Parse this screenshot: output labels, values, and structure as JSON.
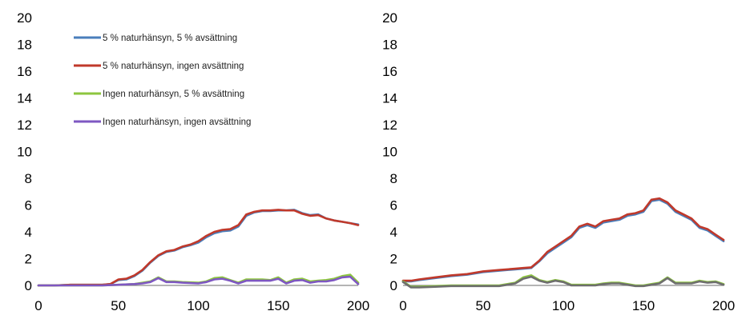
{
  "chart_data": [
    {
      "type": "line",
      "x_ticks": [
        "0",
        "50",
        "100",
        "150",
        "200"
      ],
      "y_ticks": [
        "0",
        "2",
        "4",
        "6",
        "8",
        "10",
        "12",
        "14",
        "16",
        "18",
        "20"
      ],
      "xlim": [
        0,
        200
      ],
      "ylim": [
        0,
        20
      ],
      "grid": false,
      "legend_position": "top-left",
      "series": [
        {
          "name": "5 % naturhänsyn, 5 % avsättning",
          "color": "#4a7ebb",
          "x": [
            0,
            10,
            20,
            30,
            40,
            45,
            50,
            55,
            60,
            65,
            70,
            75,
            80,
            85,
            90,
            95,
            100,
            105,
            110,
            115,
            120,
            125,
            130,
            135,
            140,
            145,
            150,
            155,
            160,
            165,
            170,
            175,
            180,
            185,
            190,
            195,
            200
          ],
          "y": [
            0,
            0,
            0.05,
            0.05,
            0.05,
            0.1,
            0.4,
            0.45,
            0.7,
            1.1,
            1.7,
            2.2,
            2.5,
            2.6,
            2.85,
            3.0,
            3.2,
            3.6,
            3.9,
            4.05,
            4.1,
            4.4,
            5.2,
            5.45,
            5.55,
            5.55,
            5.6,
            5.6,
            5.65,
            5.4,
            5.25,
            5.3,
            5.0,
            4.85,
            4.75,
            4.65,
            4.55
          ]
        },
        {
          "name": "5 % naturhänsyn, ingen avsättning",
          "color": "#c0392b",
          "x": [
            0,
            10,
            20,
            30,
            40,
            45,
            50,
            55,
            60,
            65,
            70,
            75,
            80,
            85,
            90,
            95,
            100,
            105,
            110,
            115,
            120,
            125,
            130,
            135,
            140,
            145,
            150,
            155,
            160,
            165,
            170,
            175,
            180,
            185,
            190,
            195,
            200
          ],
          "y": [
            0,
            0,
            0.05,
            0.05,
            0.05,
            0.1,
            0.45,
            0.5,
            0.75,
            1.15,
            1.75,
            2.25,
            2.55,
            2.65,
            2.9,
            3.05,
            3.3,
            3.7,
            4.0,
            4.15,
            4.2,
            4.5,
            5.3,
            5.5,
            5.6,
            5.6,
            5.65,
            5.6,
            5.6,
            5.35,
            5.2,
            5.25,
            5.0,
            4.85,
            4.75,
            4.65,
            4.5
          ]
        },
        {
          "name": "Ingen naturhänsyn, 5 % avsättning",
          "color": "#8dc63f",
          "x": [
            0,
            10,
            20,
            30,
            40,
            50,
            60,
            65,
            70,
            75,
            80,
            85,
            90,
            100,
            105,
            110,
            115,
            120,
            125,
            130,
            135,
            140,
            145,
            150,
            155,
            160,
            165,
            170,
            175,
            180,
            185,
            190,
            195,
            200
          ],
          "y": [
            0,
            0,
            0,
            0,
            0,
            0.05,
            0.1,
            0.2,
            0.3,
            0.6,
            0.3,
            0.3,
            0.25,
            0.2,
            0.3,
            0.55,
            0.6,
            0.4,
            0.2,
            0.45,
            0.45,
            0.45,
            0.4,
            0.6,
            0.2,
            0.45,
            0.5,
            0.3,
            0.35,
            0.4,
            0.5,
            0.7,
            0.8,
            0.2
          ]
        },
        {
          "name": "Ingen naturhänsyn, ingen avsättning",
          "color": "#7e57c2",
          "x": [
            0,
            10,
            20,
            30,
            40,
            50,
            60,
            65,
            70,
            75,
            80,
            85,
            90,
            100,
            105,
            110,
            115,
            120,
            125,
            130,
            135,
            140,
            145,
            150,
            155,
            160,
            165,
            170,
            175,
            180,
            185,
            190,
            195,
            200
          ],
          "y": [
            0,
            0,
            0,
            0,
            0,
            0.05,
            0.1,
            0.15,
            0.25,
            0.55,
            0.25,
            0.25,
            0.2,
            0.15,
            0.25,
            0.45,
            0.5,
            0.35,
            0.15,
            0.35,
            0.35,
            0.35,
            0.35,
            0.5,
            0.15,
            0.35,
            0.4,
            0.2,
            0.3,
            0.3,
            0.4,
            0.6,
            0.65,
            0.1
          ]
        }
      ]
    },
    {
      "type": "line",
      "x_ticks": [
        "0",
        "50",
        "100",
        "150",
        "200"
      ],
      "y_ticks": [
        "0",
        "2",
        "4",
        "6",
        "8",
        "10",
        "12",
        "14",
        "16",
        "18",
        "20"
      ],
      "xlim": [
        0,
        200
      ],
      "ylim": [
        0,
        20
      ],
      "grid": false,
      "legend_position": "none",
      "series": [
        {
          "color": "#4a7ebb",
          "x": [
            0,
            5,
            10,
            20,
            30,
            40,
            50,
            60,
            70,
            75,
            80,
            85,
            90,
            95,
            100,
            105,
            110,
            115,
            120,
            125,
            130,
            135,
            140,
            145,
            150,
            155,
            160,
            165,
            170,
            175,
            180,
            185,
            190,
            195,
            200
          ],
          "y": [
            0.3,
            0.3,
            0.4,
            0.55,
            0.7,
            0.8,
            1.0,
            1.1,
            1.2,
            1.25,
            1.3,
            1.8,
            2.4,
            2.8,
            3.2,
            3.6,
            4.3,
            4.5,
            4.3,
            4.7,
            4.8,
            4.9,
            5.2,
            5.3,
            5.5,
            6.3,
            6.4,
            6.1,
            5.5,
            5.2,
            4.9,
            4.3,
            4.1,
            3.7,
            3.3
          ]
        },
        {
          "color": "#c0392b",
          "x": [
            0,
            5,
            10,
            20,
            30,
            40,
            50,
            60,
            70,
            75,
            80,
            85,
            90,
            95,
            100,
            105,
            110,
            115,
            120,
            125,
            130,
            135,
            140,
            145,
            150,
            155,
            160,
            165,
            170,
            175,
            180,
            185,
            190,
            195,
            200
          ],
          "y": [
            0.35,
            0.35,
            0.45,
            0.6,
            0.75,
            0.85,
            1.05,
            1.15,
            1.25,
            1.3,
            1.35,
            1.85,
            2.5,
            2.9,
            3.3,
            3.7,
            4.4,
            4.6,
            4.4,
            4.8,
            4.9,
            5.0,
            5.3,
            5.4,
            5.6,
            6.4,
            6.5,
            6.2,
            5.6,
            5.3,
            5.0,
            4.4,
            4.2,
            3.8,
            3.4
          ]
        },
        {
          "color": "#8dc63f",
          "x": [
            0,
            5,
            10,
            20,
            30,
            40,
            50,
            60,
            70,
            75,
            80,
            85,
            90,
            95,
            100,
            105,
            110,
            115,
            120,
            125,
            130,
            135,
            140,
            145,
            150,
            155,
            160,
            165,
            170,
            175,
            180,
            185,
            190,
            195,
            200
          ],
          "y": [
            0.3,
            -0.1,
            -0.1,
            -0.05,
            0,
            0,
            0,
            0,
            0.2,
            0.6,
            0.75,
            0.4,
            0.25,
            0.4,
            0.3,
            0.05,
            0.05,
            0.05,
            0.05,
            0.15,
            0.2,
            0.2,
            0.1,
            0,
            0,
            0.1,
            0.2,
            0.6,
            0.2,
            0.2,
            0.2,
            0.35,
            0.25,
            0.3,
            0.1
          ]
        },
        {
          "color": "#6e6e6e",
          "x": [
            0,
            5,
            10,
            20,
            30,
            40,
            50,
            60,
            70,
            75,
            80,
            85,
            90,
            95,
            100,
            105,
            110,
            115,
            120,
            125,
            130,
            135,
            140,
            145,
            150,
            155,
            160,
            165,
            170,
            175,
            180,
            185,
            190,
            195,
            200
          ],
          "y": [
            0.25,
            -0.15,
            -0.15,
            -0.1,
            -0.05,
            -0.05,
            -0.05,
            -0.05,
            0.15,
            0.5,
            0.65,
            0.35,
            0.2,
            0.35,
            0.25,
            0,
            0,
            0,
            0,
            0.1,
            0.15,
            0.15,
            0.05,
            -0.05,
            -0.05,
            0.05,
            0.15,
            0.55,
            0.15,
            0.15,
            0.15,
            0.3,
            0.2,
            0.25,
            0.05
          ]
        }
      ]
    }
  ]
}
